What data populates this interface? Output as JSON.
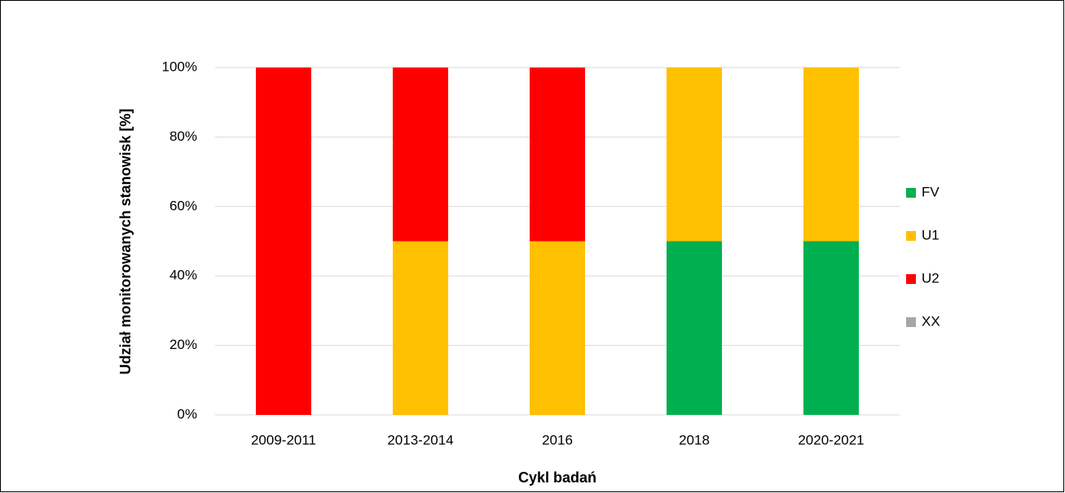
{
  "chart_data": {
    "type": "stacked_bar",
    "x_label": "Cykl badań",
    "y_label": "Udział monitorowanych stanowisk [%]",
    "categories": [
      "2009-2011",
      "2013-2014",
      "2016",
      "2018",
      "2020-2021"
    ],
    "series": [
      {
        "name": "FV",
        "color": "#00b050",
        "values": [
          0,
          0,
          0,
          50,
          50
        ]
      },
      {
        "name": "U1",
        "color": "#ffc000",
        "values": [
          0,
          50,
          50,
          50,
          50
        ]
      },
      {
        "name": "U2",
        "color": "#ff0000",
        "values": [
          100,
          50,
          50,
          0,
          0
        ]
      },
      {
        "name": "XX",
        "color": "#a6a6a6",
        "values": [
          0,
          0,
          0,
          0,
          0
        ]
      }
    ],
    "ylim": [
      0,
      100
    ],
    "yticks": [
      {
        "value": 0,
        "label": "0%"
      },
      {
        "value": 20,
        "label": "20%"
      },
      {
        "value": 40,
        "label": "40%"
      },
      {
        "value": 60,
        "label": "60%"
      },
      {
        "value": 80,
        "label": "80%"
      },
      {
        "value": 100,
        "label": "100%"
      }
    ],
    "grid": true,
    "legend": "right"
  }
}
